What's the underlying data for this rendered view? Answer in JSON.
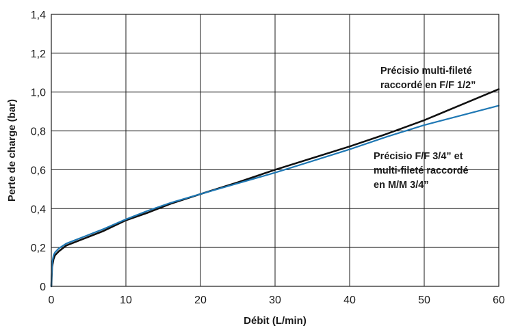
{
  "chart_data": {
    "type": "line",
    "title": "",
    "xlabel": "Débit (L/min)",
    "ylabel": "Perte de charge (bar)",
    "xlim": [
      0,
      60
    ],
    "ylim": [
      0,
      1.4
    ],
    "x_ticks": [
      "0",
      "10",
      "20",
      "30",
      "40",
      "50",
      "60"
    ],
    "y_ticks": [
      "0",
      "0,2",
      "0,4",
      "0,6",
      "0,8",
      "1,0",
      "1,2",
      "1,4"
    ],
    "grid": true,
    "series": [
      {
        "color": "#111111",
        "x": [
          0,
          0.1,
          0.3,
          0.5,
          1,
          2,
          3,
          5,
          7,
          10,
          13,
          16,
          20,
          25,
          30,
          35,
          40,
          45,
          50,
          55,
          60
        ],
        "y": [
          0,
          0.1,
          0.14,
          0.16,
          0.18,
          0.21,
          0.225,
          0.255,
          0.285,
          0.34,
          0.38,
          0.425,
          0.475,
          0.535,
          0.6,
          0.66,
          0.72,
          0.785,
          0.855,
          0.935,
          1.015
        ]
      },
      {
        "color": "#1f78b4",
        "x": [
          0,
          0.1,
          0.3,
          0.5,
          1,
          2,
          3,
          5,
          7,
          10,
          13,
          16,
          20,
          25,
          30,
          35,
          40,
          45,
          50,
          55,
          60
        ],
        "y": [
          0,
          0.12,
          0.16,
          0.175,
          0.195,
          0.22,
          0.235,
          0.265,
          0.295,
          0.345,
          0.39,
          0.43,
          0.475,
          0.53,
          0.585,
          0.645,
          0.705,
          0.77,
          0.83,
          0.88,
          0.93
        ]
      }
    ],
    "annotations": [
      {
        "lines": [
          "Précisio multi-fileté",
          "raccordé en F/F 1/2”"
        ]
      },
      {
        "lines": [
          "Précisio F/F 3/4” et",
          "multi-fileté raccordé",
          "en M/M 3/4”"
        ]
      }
    ]
  }
}
